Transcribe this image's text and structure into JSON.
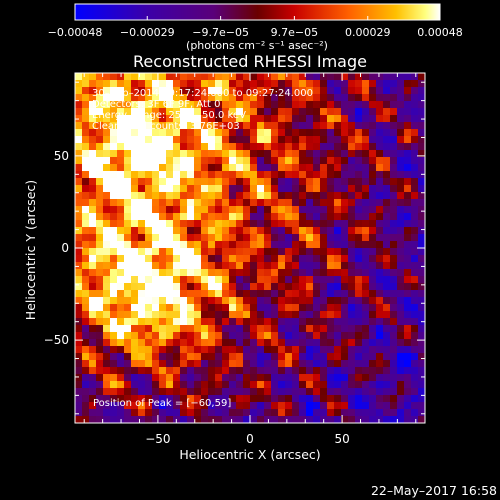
{
  "chart_data": {
    "type": "heatmap",
    "title": "Reconstructed RHESSI Image",
    "xlabel": "Heliocentric X (arcsec)",
    "ylabel": "Heliocentric Y (arcsec)",
    "xlim": [
      -95,
      95
    ],
    "ylim": [
      -95,
      95
    ],
    "xticks": [
      -50,
      0,
      50
    ],
    "yticks": [
      -50,
      0,
      50
    ],
    "xtick_labels": [
      "−50",
      "0",
      "50"
    ],
    "ytick_labels": [
      "−50",
      "0",
      "50"
    ],
    "colorbar": {
      "range": [
        -0.00048,
        0.00048
      ],
      "ticks": [
        -0.00048,
        -0.00029,
        -9.7e-05,
        9.7e-05,
        0.00029,
        0.00048
      ],
      "tick_labels": [
        "−0.00048",
        "−0.00029",
        "−9.7e−05",
        "9.7e−05",
        "0.00029",
        "0.00048"
      ],
      "units_label": "(photons cm⁻² s⁻¹ asec⁻²)"
    },
    "annotations": {
      "time": "30–Sep–2014 09:17:24.000 to 09:27:24.000",
      "detectors": "Detectors: 3F 6F 9F, Att 0",
      "energy": "Energy Range: 25.0 – 50.0 keV",
      "algorithm": "Clean   Total counts: 3.76E+03",
      "peak": "Position of Peak = [−60,59]"
    },
    "peak_position": [
      -60,
      59
    ],
    "grid": false,
    "legend": "none"
  },
  "footer": {
    "date": "22–May–2017 16:58"
  },
  "colors": {
    "background": "#000000",
    "text": "#ffffff",
    "colormap": [
      "#0000ff",
      "#3c00a8",
      "#5a007a",
      "#6a0000",
      "#c80000",
      "#ff6000",
      "#ffc000",
      "#ffff80",
      "#ffffff"
    ]
  }
}
